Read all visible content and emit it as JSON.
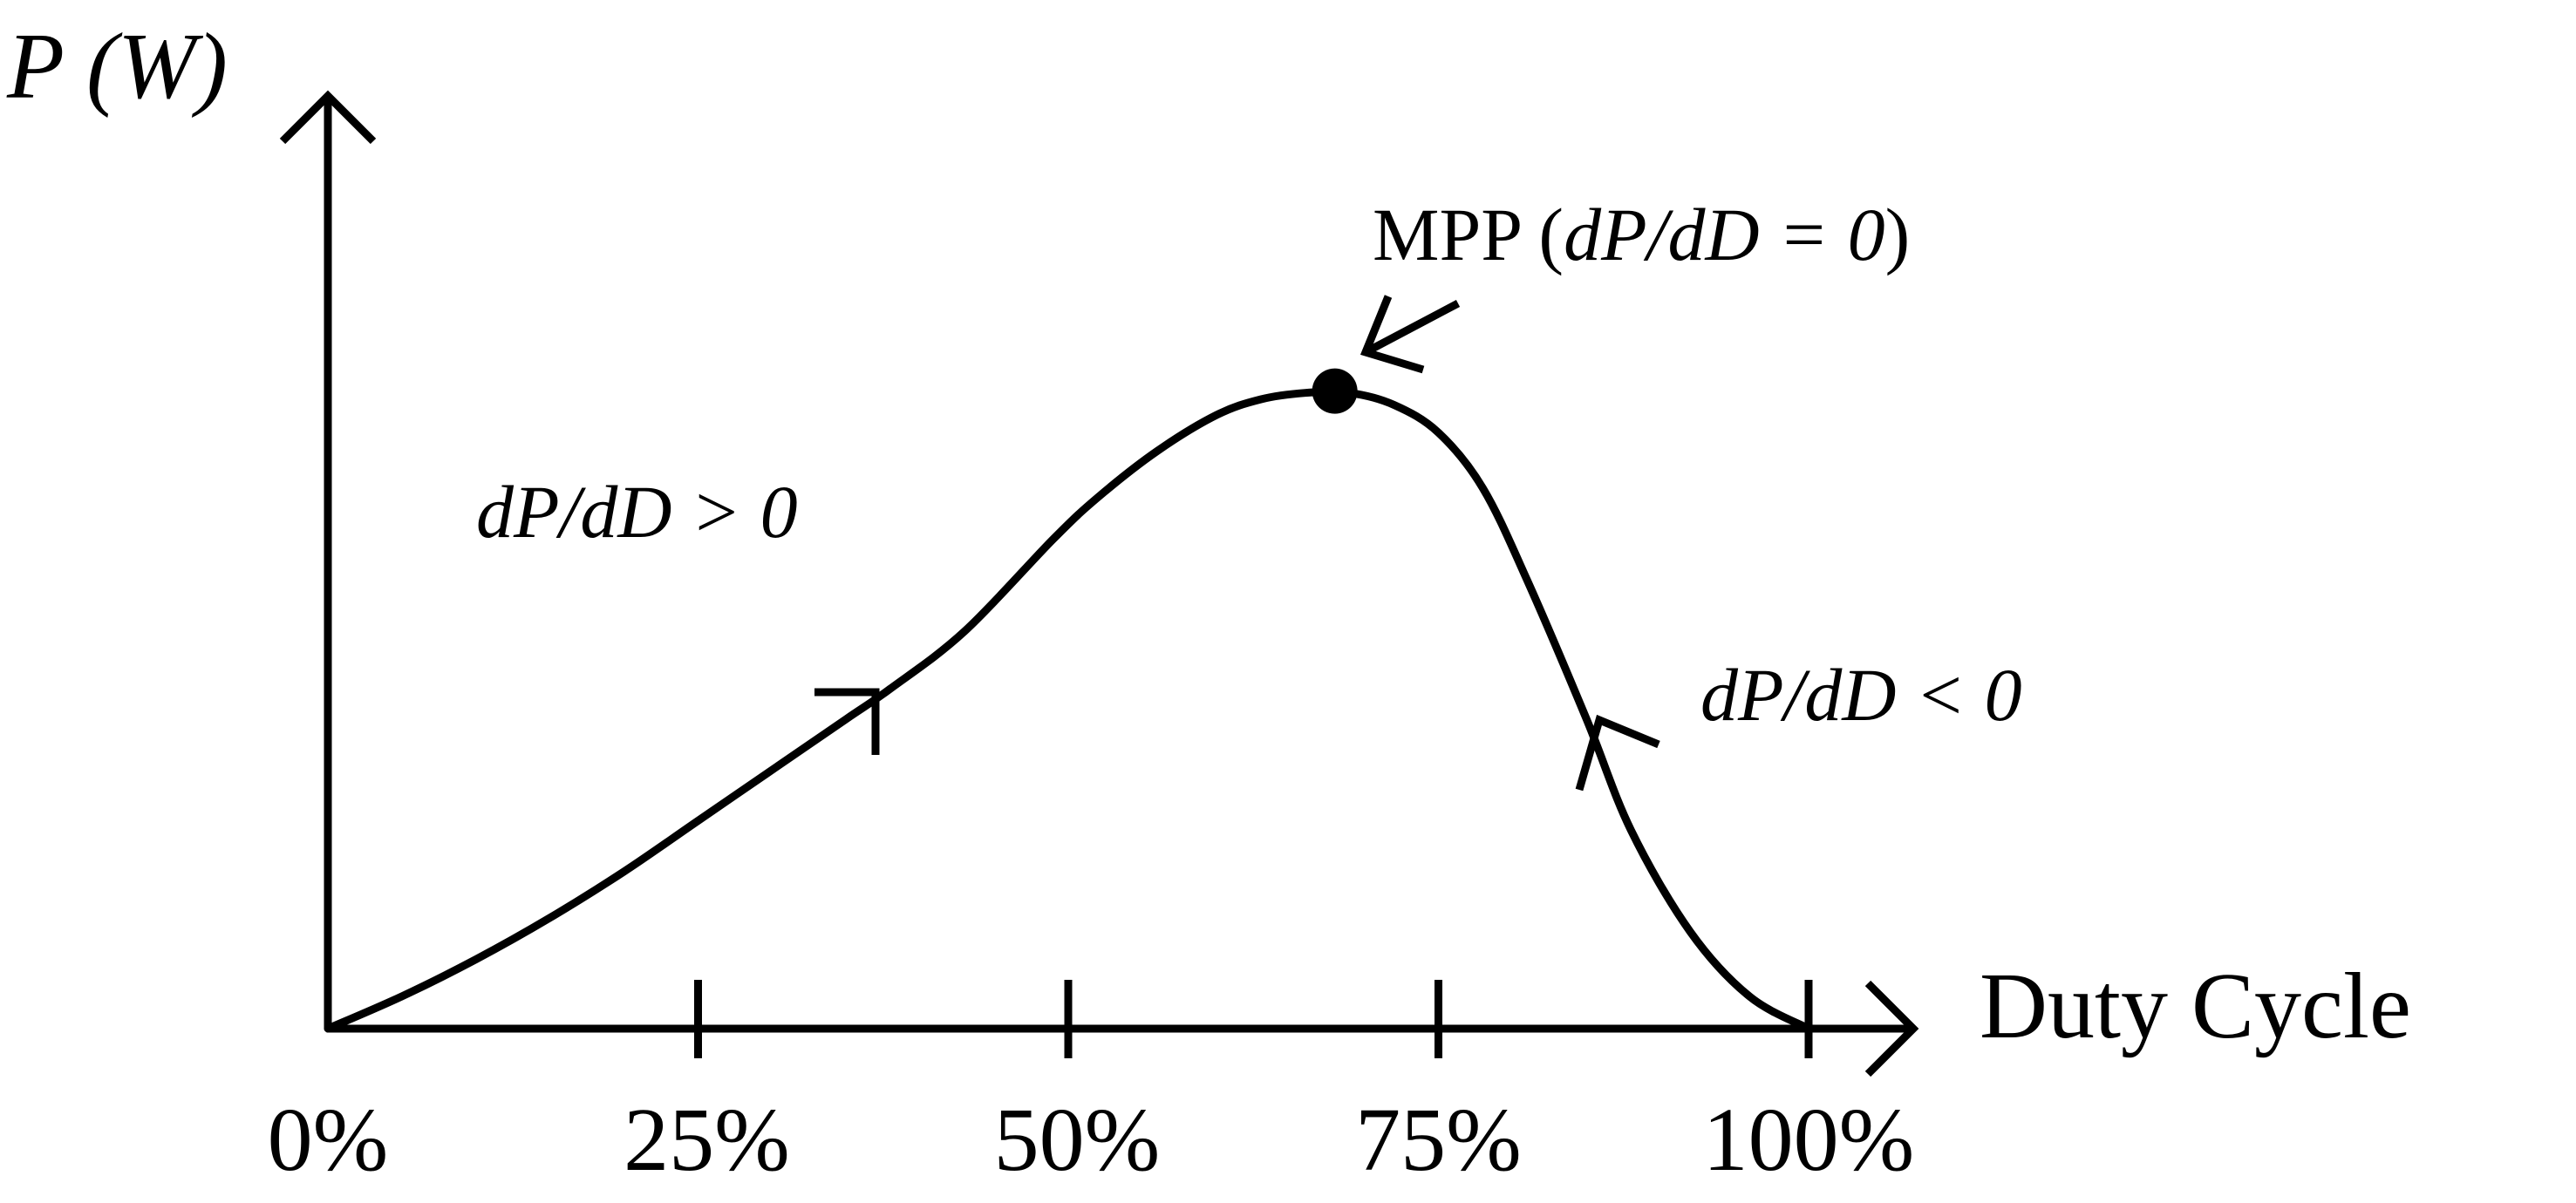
{
  "chart_data": {
    "type": "line",
    "title": "",
    "xlabel": "Duty Cycle",
    "ylabel": "P (W)",
    "x_ticks": [
      "0%",
      "25%",
      "50%",
      "75%",
      "100%"
    ],
    "x_tick_values": [
      0,
      25,
      50,
      75,
      100
    ],
    "xlim": [
      0,
      100
    ],
    "ylim": [
      0,
      100
    ],
    "grid": false,
    "series": [
      {
        "x": [
          0,
          5,
          10,
          15,
          20,
          25,
          30,
          35,
          38,
          43,
          49,
          52,
          56,
          60,
          63,
          66,
          69,
          72,
          75,
          78,
          81,
          85,
          88,
          92,
          96,
          100
        ],
        "y": [
          0,
          3.5,
          7.5,
          12,
          17,
          22.5,
          28,
          33.5,
          36.8,
          43,
          53,
          57.5,
          62.5,
          66.4,
          68.1,
          68.8,
          68.8,
          67.5,
          64.5,
          58.5,
          48.5,
          33.5,
          21.5,
          10.5,
          3.5,
          0
        ]
      }
    ],
    "peak": {
      "x": 68,
      "y": 69
    },
    "annotations": {
      "mpp_prefix": "MPP (",
      "mpp_math": "dP/dD = 0",
      "mpp_suffix": ")",
      "rising": "dP/dD > 0",
      "falling": "dP/dD < 0"
    }
  }
}
